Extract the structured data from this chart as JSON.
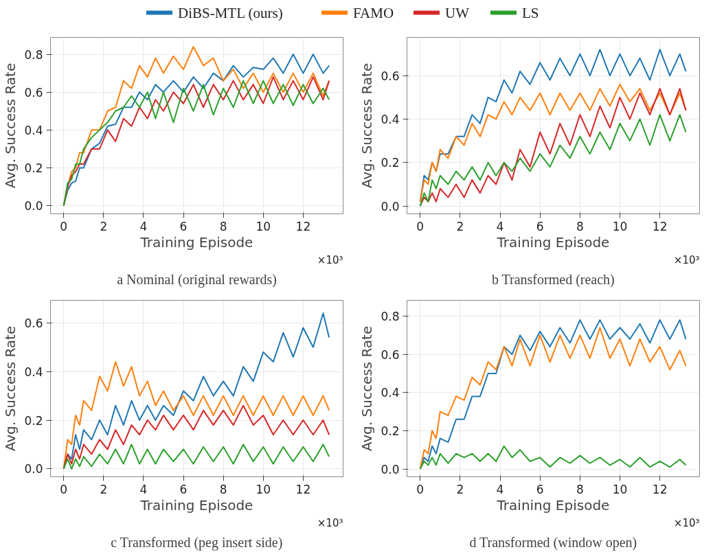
{
  "chart_data": [
    {
      "type": "line",
      "title": "a Nominal (original rewards)",
      "xlabel": "Training Episode",
      "ylabel": "Avg. Success Rate",
      "annotations": [
        "×10³"
      ],
      "legend": "top",
      "grid": true,
      "xlim": [
        -0.66,
        14.0
      ],
      "ylim": [
        -0.043,
        0.889
      ],
      "xticks": [
        0,
        2,
        4,
        6,
        8,
        10,
        12
      ],
      "yticks": [
        {
          "value": 0,
          "label": "0.0"
        },
        {
          "value": 0.2,
          "label": "0.2"
        },
        {
          "value": 0.4,
          "label": "0.4"
        },
        {
          "value": 0.6,
          "label": "0.6"
        },
        {
          "value": 0.8,
          "label": "0.8"
        }
      ],
      "x": [
        0,
        0.2,
        0.4,
        0.6,
        0.8,
        1.0,
        1.4,
        1.8,
        2.2,
        2.6,
        3.0,
        3.4,
        3.8,
        4.2,
        4.6,
        5.0,
        5.5,
        6.0,
        6.5,
        7.0,
        7.5,
        8.0,
        8.5,
        9.0,
        9.5,
        10.0,
        10.5,
        11.0,
        11.5,
        12.0,
        12.5,
        13.0,
        13.3
      ],
      "series": [
        {
          "name": "DiBS-MTL (ours)",
          "color": "#1f77b4",
          "values": [
            0,
            0.08,
            0.12,
            0.13,
            0.2,
            0.2,
            0.3,
            0.33,
            0.42,
            0.43,
            0.52,
            0.52,
            0.6,
            0.56,
            0.64,
            0.6,
            0.66,
            0.6,
            0.68,
            0.62,
            0.7,
            0.66,
            0.74,
            0.68,
            0.73,
            0.72,
            0.78,
            0.7,
            0.8,
            0.7,
            0.8,
            0.7,
            0.74
          ]
        },
        {
          "name": "FAMO",
          "color": "#ff7f0e",
          "values": [
            0,
            0.1,
            0.18,
            0.2,
            0.28,
            0.28,
            0.4,
            0.4,
            0.5,
            0.52,
            0.66,
            0.62,
            0.74,
            0.68,
            0.78,
            0.7,
            0.79,
            0.72,
            0.84,
            0.74,
            0.78,
            0.66,
            0.72,
            0.62,
            0.7,
            0.6,
            0.7,
            0.6,
            0.7,
            0.6,
            0.7,
            0.58,
            0.66
          ]
        },
        {
          "name": "UW",
          "color": "#d62728",
          "values": [
            0,
            0.1,
            0.16,
            0.18,
            0.22,
            0.22,
            0.3,
            0.3,
            0.4,
            0.34,
            0.46,
            0.42,
            0.52,
            0.46,
            0.56,
            0.5,
            0.6,
            0.54,
            0.64,
            0.52,
            0.64,
            0.56,
            0.66,
            0.56,
            0.64,
            0.54,
            0.68,
            0.56,
            0.66,
            0.56,
            0.68,
            0.56,
            0.66
          ]
        },
        {
          "name": "LS",
          "color": "#2ca02c",
          "values": [
            0,
            0.12,
            0.14,
            0.22,
            0.22,
            0.3,
            0.36,
            0.4,
            0.44,
            0.5,
            0.52,
            0.58,
            0.52,
            0.6,
            0.46,
            0.6,
            0.44,
            0.62,
            0.5,
            0.64,
            0.48,
            0.62,
            0.52,
            0.66,
            0.54,
            0.66,
            0.54,
            0.64,
            0.53,
            0.64,
            0.54,
            0.62,
            0.56
          ]
        }
      ]
    },
    {
      "type": "line",
      "title": "b Transformed (reach)",
      "xlabel": "Training Episode",
      "ylabel": "Avg. Success Rate",
      "annotations": [
        "×10³"
      ],
      "grid": true,
      "xlim": [
        -0.66,
        13.99
      ],
      "ylim": [
        -0.036,
        0.776
      ],
      "xticks": [
        0,
        2,
        4,
        6,
        8,
        10,
        12
      ],
      "yticks": [
        {
          "value": 0,
          "label": "0.0"
        },
        {
          "value": 0.2,
          "label": "0.2"
        },
        {
          "value": 0.4,
          "label": "0.4"
        },
        {
          "value": 0.6,
          "label": "0.6"
        }
      ],
      "x": [
        0,
        0.2,
        0.4,
        0.6,
        0.8,
        1.0,
        1.4,
        1.8,
        2.2,
        2.6,
        3.0,
        3.4,
        3.8,
        4.2,
        4.6,
        5.0,
        5.5,
        6.0,
        6.5,
        7.0,
        7.5,
        8.0,
        8.5,
        9.0,
        9.5,
        10.0,
        10.5,
        11.0,
        11.5,
        12.0,
        12.5,
        13.0,
        13.3
      ],
      "series": [
        {
          "color": "#1f77b4",
          "values": [
            0.02,
            0.14,
            0.12,
            0.2,
            0.16,
            0.24,
            0.24,
            0.32,
            0.32,
            0.42,
            0.38,
            0.5,
            0.48,
            0.58,
            0.52,
            0.62,
            0.56,
            0.66,
            0.58,
            0.68,
            0.6,
            0.7,
            0.6,
            0.72,
            0.6,
            0.7,
            0.6,
            0.68,
            0.58,
            0.72,
            0.6,
            0.7,
            0.62
          ]
        },
        {
          "color": "#ff7f0e",
          "values": [
            0.02,
            0.12,
            0.1,
            0.2,
            0.16,
            0.26,
            0.22,
            0.32,
            0.28,
            0.38,
            0.32,
            0.42,
            0.4,
            0.48,
            0.42,
            0.5,
            0.44,
            0.52,
            0.42,
            0.52,
            0.44,
            0.52,
            0.44,
            0.54,
            0.46,
            0.56,
            0.48,
            0.54,
            0.44,
            0.52,
            0.42,
            0.52,
            0.44
          ]
        },
        {
          "color": "#d62728",
          "values": [
            0.0,
            0.04,
            0.02,
            0.06,
            0.02,
            0.08,
            0.04,
            0.1,
            0.04,
            0.12,
            0.06,
            0.14,
            0.1,
            0.2,
            0.12,
            0.26,
            0.18,
            0.34,
            0.24,
            0.38,
            0.28,
            0.42,
            0.32,
            0.46,
            0.36,
            0.5,
            0.4,
            0.52,
            0.42,
            0.54,
            0.42,
            0.54,
            0.44
          ]
        },
        {
          "color": "#2ca02c",
          "values": [
            0.0,
            0.06,
            0.02,
            0.12,
            0.08,
            0.14,
            0.1,
            0.16,
            0.12,
            0.18,
            0.12,
            0.2,
            0.14,
            0.2,
            0.16,
            0.22,
            0.16,
            0.24,
            0.18,
            0.28,
            0.22,
            0.32,
            0.24,
            0.34,
            0.26,
            0.38,
            0.3,
            0.4,
            0.28,
            0.42,
            0.3,
            0.42,
            0.34
          ]
        }
      ]
    },
    {
      "type": "line",
      "title": "c Transformed (peg insert side)",
      "xlabel": "Training Episode",
      "ylabel": "Avg. Success Rate",
      "annotations": [
        "×10³"
      ],
      "grid": true,
      "xlim": [
        -0.66,
        14.0
      ],
      "ylim": [
        -0.033,
        0.693
      ],
      "xticks": [
        0,
        2,
        4,
        6,
        8,
        10,
        12
      ],
      "yticks": [
        {
          "value": 0,
          "label": "0.0"
        },
        {
          "value": 0.2,
          "label": "0.2"
        },
        {
          "value": 0.4,
          "label": "0.4"
        },
        {
          "value": 0.6,
          "label": "0.6"
        }
      ],
      "x": [
        0,
        0.2,
        0.4,
        0.6,
        0.8,
        1.0,
        1.4,
        1.8,
        2.2,
        2.6,
        3.0,
        3.4,
        3.8,
        4.2,
        4.6,
        5.0,
        5.5,
        6.0,
        6.5,
        7.0,
        7.5,
        8.0,
        8.5,
        9.0,
        9.5,
        10.0,
        10.5,
        11.0,
        11.5,
        12.0,
        12.5,
        13.0,
        13.3
      ],
      "series": [
        {
          "color": "#1f77b4",
          "values": [
            0.0,
            0.06,
            0.04,
            0.14,
            0.08,
            0.16,
            0.12,
            0.2,
            0.14,
            0.26,
            0.18,
            0.28,
            0.2,
            0.26,
            0.2,
            0.26,
            0.22,
            0.32,
            0.28,
            0.38,
            0.3,
            0.36,
            0.3,
            0.42,
            0.36,
            0.48,
            0.44,
            0.56,
            0.46,
            0.58,
            0.5,
            0.64,
            0.54
          ]
        },
        {
          "color": "#ff7f0e",
          "values": [
            0.0,
            0.12,
            0.1,
            0.22,
            0.18,
            0.28,
            0.24,
            0.38,
            0.32,
            0.44,
            0.34,
            0.42,
            0.3,
            0.36,
            0.26,
            0.32,
            0.24,
            0.3,
            0.22,
            0.3,
            0.22,
            0.3,
            0.22,
            0.3,
            0.22,
            0.3,
            0.22,
            0.3,
            0.22,
            0.3,
            0.22,
            0.3,
            0.24
          ]
        },
        {
          "color": "#d62728",
          "values": [
            0.0,
            0.06,
            0.02,
            0.08,
            0.04,
            0.1,
            0.06,
            0.12,
            0.08,
            0.16,
            0.1,
            0.18,
            0.14,
            0.2,
            0.16,
            0.22,
            0.16,
            0.22,
            0.16,
            0.24,
            0.18,
            0.24,
            0.18,
            0.26,
            0.18,
            0.22,
            0.14,
            0.2,
            0.14,
            0.2,
            0.14,
            0.2,
            0.14
          ]
        },
        {
          "color": "#2ca02c",
          "values": [
            0.0,
            0.04,
            0.0,
            0.04,
            0.01,
            0.05,
            0.01,
            0.06,
            0.02,
            0.08,
            0.02,
            0.1,
            0.02,
            0.08,
            0.02,
            0.08,
            0.03,
            0.08,
            0.02,
            0.09,
            0.03,
            0.09,
            0.02,
            0.1,
            0.03,
            0.09,
            0.02,
            0.09,
            0.03,
            0.09,
            0.03,
            0.1,
            0.05
          ]
        }
      ]
    },
    {
      "type": "line",
      "title": "d Transformed (window open)",
      "xlabel": "Training Episode",
      "ylabel": "Avg. Success Rate",
      "annotations": [
        "×10³"
      ],
      "grid": true,
      "xlim": [
        -0.66,
        13.99
      ],
      "ylim": [
        -0.041,
        0.883
      ],
      "xticks": [
        0,
        2,
        4,
        6,
        8,
        10,
        12
      ],
      "yticks": [
        {
          "value": 0,
          "label": "0.0"
        },
        {
          "value": 0.2,
          "label": "0.2"
        },
        {
          "value": 0.4,
          "label": "0.4"
        },
        {
          "value": 0.6,
          "label": "0.6"
        },
        {
          "value": 0.8,
          "label": "0.8"
        }
      ],
      "x": [
        0,
        0.2,
        0.4,
        0.6,
        0.8,
        1.0,
        1.4,
        1.8,
        2.2,
        2.6,
        3.0,
        3.4,
        3.8,
        4.2,
        4.6,
        5.0,
        5.5,
        6.0,
        6.5,
        7.0,
        7.5,
        8.0,
        8.5,
        9.0,
        9.5,
        10.0,
        10.5,
        11.0,
        11.5,
        12.0,
        12.5,
        13.0,
        13.3
      ],
      "series": [
        {
          "color": "#1f77b4",
          "values": [
            0.0,
            0.06,
            0.04,
            0.12,
            0.08,
            0.16,
            0.14,
            0.26,
            0.26,
            0.38,
            0.38,
            0.5,
            0.5,
            0.64,
            0.6,
            0.7,
            0.62,
            0.72,
            0.64,
            0.74,
            0.66,
            0.78,
            0.68,
            0.78,
            0.68,
            0.74,
            0.68,
            0.76,
            0.66,
            0.78,
            0.68,
            0.78,
            0.68
          ]
        },
        {
          "color": "#ff7f0e",
          "values": [
            0.0,
            0.1,
            0.08,
            0.2,
            0.16,
            0.3,
            0.28,
            0.38,
            0.36,
            0.48,
            0.44,
            0.56,
            0.52,
            0.64,
            0.54,
            0.68,
            0.54,
            0.7,
            0.56,
            0.7,
            0.58,
            0.7,
            0.58,
            0.74,
            0.58,
            0.68,
            0.54,
            0.68,
            0.56,
            0.64,
            0.52,
            0.62,
            0.54
          ]
        },
        {
          "color": "#2ca02c",
          "values": [
            0.0,
            0.04,
            0.02,
            0.06,
            0.02,
            0.08,
            0.03,
            0.08,
            0.06,
            0.08,
            0.04,
            0.08,
            0.04,
            0.12,
            0.06,
            0.1,
            0.04,
            0.06,
            0.01,
            0.06,
            0.03,
            0.07,
            0.03,
            0.06,
            0.02,
            0.05,
            0.01,
            0.06,
            0.01,
            0.04,
            0.01,
            0.05,
            0.02
          ]
        }
      ]
    }
  ]
}
